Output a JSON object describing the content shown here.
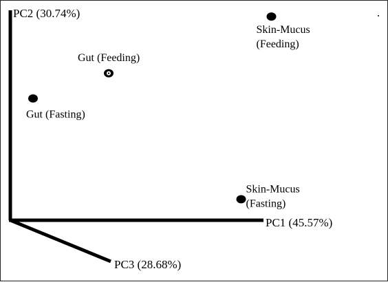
{
  "chart_data": {
    "type": "scatter",
    "title": "",
    "axes": [
      {
        "id": "pc1",
        "label": "PC1 (45.57%)"
      },
      {
        "id": "pc2",
        "label": "PC2 (30.74%)"
      },
      {
        "id": "pc3",
        "label": "PC3 (28.68%)"
      }
    ],
    "points": [
      {
        "label": "Gut (Feeding)",
        "pc1": 0.26,
        "pc2": 0.7,
        "marker": "ring"
      },
      {
        "label": "Gut (Fasting)",
        "pc1": 0.06,
        "pc2": 0.58,
        "marker": "dot"
      },
      {
        "label": "Skin-Mucus (Feeding)",
        "pc1": 0.69,
        "pc2": 0.97,
        "marker": "dot"
      },
      {
        "label": "Skin-Mucus (Fasting)",
        "pc1": 0.61,
        "pc2": 0.1,
        "marker": "dot"
      }
    ]
  }
}
